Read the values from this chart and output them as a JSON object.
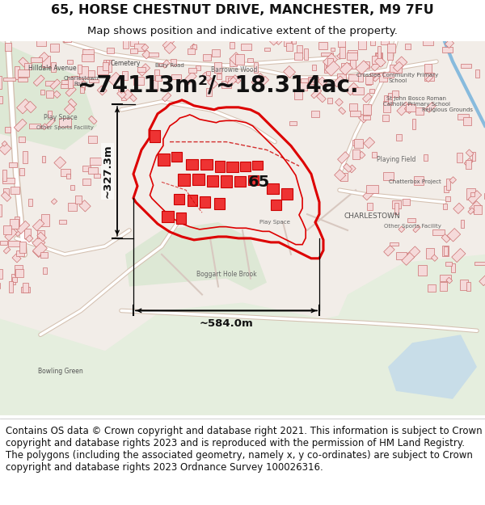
{
  "title_line1": "65, HORSE CHESTNUT DRIVE, MANCHESTER, M9 7FU",
  "title_line2": "Map shows position and indicative extent of the property.",
  "area_text": "~74113m²/~18.314ac.",
  "dim_width": "~584.0m",
  "dim_height": "~327.3m",
  "label_65": "65",
  "footer_text": "Contains OS data © Crown copyright and database right 2021. This information is subject to Crown copyright and database rights 2023 and is reproduced with the permission of HM Land Registry. The polygons (including the associated geometry, namely x, y co-ordinates) are subject to Crown copyright and database rights 2023 Ordnance Survey 100026316.",
  "title_fontsize": 11.5,
  "subtitle_fontsize": 9.5,
  "area_fontsize": 20,
  "label_fontsize": 14,
  "dim_fontsize": 9.5,
  "footer_fontsize": 8.5,
  "map_bg": "#f0ece6",
  "road_fill": "#ffffff",
  "building_edge": "#d08080",
  "boundary_color": "#dd0000",
  "text_color": "#222222",
  "footer_color": "#111111"
}
